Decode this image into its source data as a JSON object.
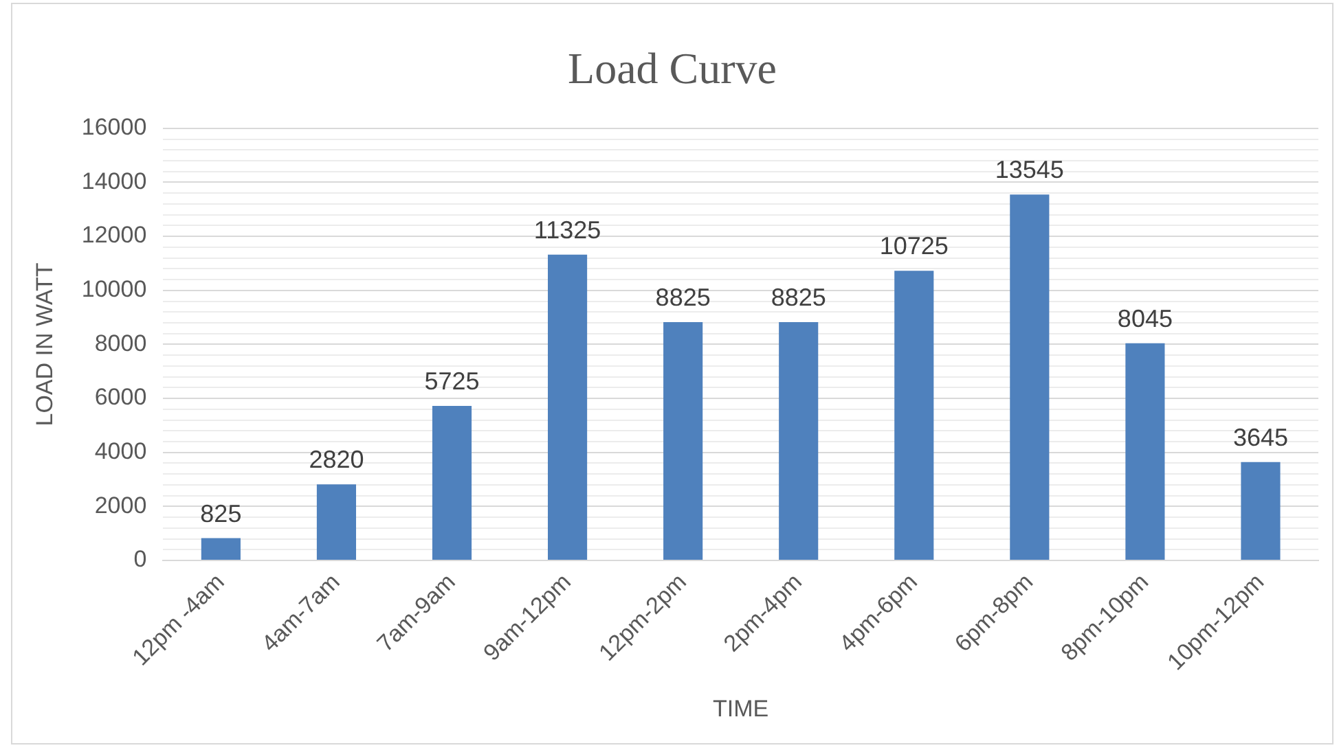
{
  "chart_data": {
    "type": "bar",
    "title": "Load Curve",
    "xlabel": "TIME",
    "ylabel": "LOAD IN WATT",
    "categories": [
      "12pm -4am",
      "4am-7am",
      "7am-9am",
      "9am-12pm",
      "12pm-2pm",
      "2pm-4pm",
      "4pm-6pm",
      "6pm-8pm",
      "8pm-10pm",
      "10pm-12pm"
    ],
    "values": [
      825,
      2820,
      5725,
      11325,
      8825,
      8825,
      10725,
      13545,
      8045,
      3645
    ],
    "color": "#4f81bd",
    "data_labels": true,
    "grid": "y",
    "legend": false,
    "ylim": [
      0,
      16000
    ],
    "yticks": [
      0,
      {
        "value": 400,
        "label": null
      },
      {
        "value": 800,
        "label": null
      },
      {
        "value": 1200,
        "label": null
      },
      {
        "value": 1600,
        "label": null
      },
      2000,
      {
        "value": 2400,
        "label": null
      },
      {
        "value": 2800,
        "label": null
      },
      {
        "value": 3200,
        "label": null
      },
      {
        "value": 3600,
        "label": null
      },
      4000,
      {
        "value": 4400,
        "label": null
      },
      {
        "value": 4800,
        "label": null
      },
      {
        "value": 5200,
        "label": null
      },
      {
        "value": 5600,
        "label": null
      },
      6000,
      {
        "value": 6400,
        "label": null
      },
      {
        "value": 6800,
        "label": null
      },
      {
        "value": 7200,
        "label": null
      },
      {
        "value": 7600,
        "label": null
      },
      8000,
      {
        "value": 8400,
        "label": null
      },
      {
        "value": 8800,
        "label": null
      },
      {
        "value": 9200,
        "label": null
      },
      {
        "value": 9600,
        "label": null
      },
      10000,
      {
        "value": 10400,
        "label": null
      },
      {
        "value": 10800,
        "label": null
      },
      {
        "value": 11200,
        "label": null
      },
      {
        "value": 11600,
        "label": null
      },
      12000,
      {
        "value": 12400,
        "label": null
      },
      {
        "value": 12800,
        "label": null
      },
      {
        "value": 13200,
        "label": null
      },
      {
        "value": 13600,
        "label": null
      },
      14000,
      {
        "value": 14400,
        "label": null
      },
      {
        "value": 14800,
        "label": null
      },
      {
        "value": 15200,
        "label": null
      },
      {
        "value": 15600,
        "label": null
      },
      16000
    ]
  }
}
